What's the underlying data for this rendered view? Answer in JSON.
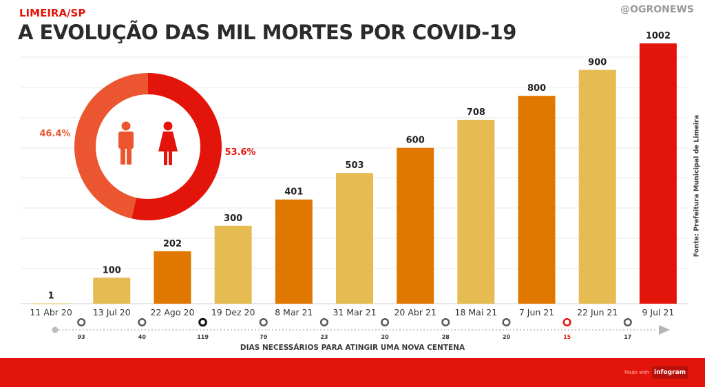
{
  "header": {
    "kicker": "LIMEIRA/SP",
    "handle": "@OGRONEWS",
    "title": "A EVOLUÇÃO DAS MIL MORTES POR COVID-19",
    "source": "Fonte: Prefeitura Municipal de Limeira"
  },
  "colors": {
    "accent_red": "#e3150b",
    "orange": "#e07800",
    "gold": "#e5bb52",
    "donut_light": "#eb5630"
  },
  "icons": [
    "male-person-icon",
    "female-person-icon"
  ],
  "chart_data": [
    {
      "type": "bar",
      "categories": [
        "11 Abr 20",
        "13 Jul 20",
        "22 Ago 20",
        "19 Dez 20",
        "8 Mar 21",
        "31 Mar 21",
        "20 Abr 21",
        "18 Mai 21",
        "7 Jun 21",
        "22 Jun 21",
        "9 Jul 21"
      ],
      "values": [
        1,
        100,
        202,
        300,
        401,
        503,
        600,
        708,
        800,
        900,
        1002
      ],
      "ylim": [
        0,
        1002
      ],
      "grid": true,
      "timeline": {
        "label": "DIAS NECESSÁRIOS PARA ATINGIR UMA NOVA CENTENA",
        "values": [
          93,
          40,
          119,
          79,
          23,
          20,
          28,
          20,
          15,
          17
        ]
      }
    },
    {
      "type": "pie",
      "style": "donut",
      "values": [
        {
          "label": "46.4%",
          "value": 46.4
        },
        {
          "label": "53.6%",
          "value": 53.6
        }
      ]
    }
  ],
  "footer": {
    "made_with": "Made with",
    "brand": "infogram"
  }
}
